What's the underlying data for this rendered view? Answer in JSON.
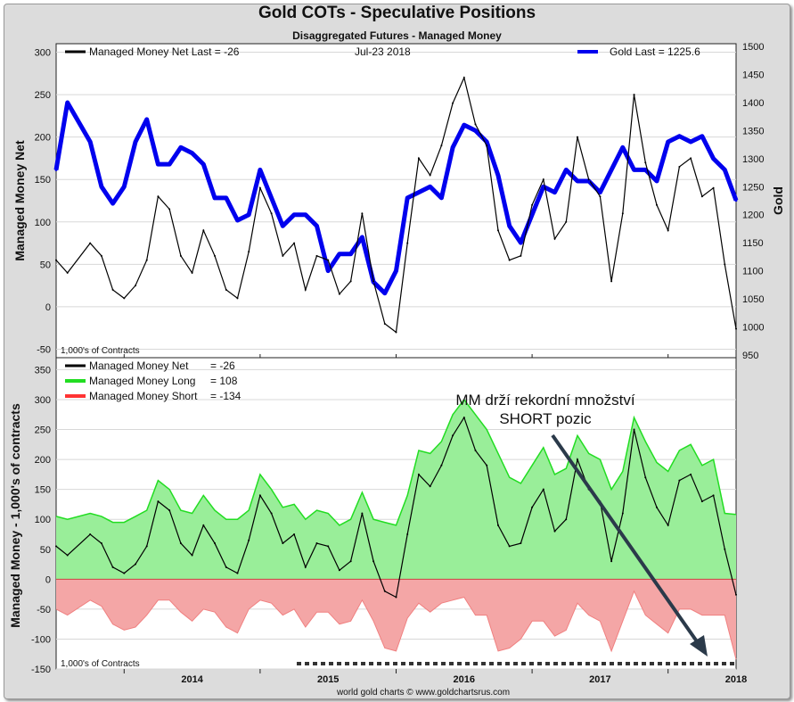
{
  "header": {
    "title": "Gold COTs - Speculative Positions",
    "subtitle": "Disaggregated Futures - Managed Money",
    "footer": "world gold charts © www.goldchartsrus.com"
  },
  "colors": {
    "net": "#000000",
    "gold": "#0000ee",
    "long_line": "#22dd22",
    "long_fill": "#99ee99",
    "short_line": "#ff3333",
    "short_fill": "#f4a6a6",
    "arrow": "#2b3a4a"
  },
  "annotation": {
    "line1": "MM drží rekordní množství",
    "line2": "SHORT pozic"
  },
  "chart_data": [
    {
      "type": "line",
      "panel": "top",
      "date_label": "Jul-23  2018",
      "units_note": "1,000's of Contracts",
      "ylabel": "Managed Money Net",
      "y2label": "Gold",
      "ylim": [
        -60,
        310
      ],
      "y2lim": [
        945,
        1505
      ],
      "yticks": [
        "300",
        "250",
        "200",
        "150",
        "100",
        "50",
        "0",
        "-50"
      ],
      "y2ticks": [
        "1500",
        "1450",
        "1400",
        "1350",
        "1300",
        "1250",
        "1200",
        "1150",
        "1100",
        "1050",
        "1000",
        "950"
      ],
      "x_ticks": [
        "2014",
        "2015",
        "2016",
        "2017",
        "2018"
      ],
      "x_range": [
        "2013-07",
        "2018-07"
      ],
      "series": [
        {
          "name": "Managed Money Net",
          "legend": "Managed Money Net   Last = -26",
          "axis": "left",
          "x": [
            "2013-07",
            "2013-08",
            "2013-10",
            "2013-11",
            "2013-12",
            "2014-01",
            "2014-02",
            "2014-03",
            "2014-04",
            "2014-05",
            "2014-06",
            "2014-07",
            "2014-08",
            "2014-09",
            "2014-10",
            "2014-11",
            "2014-12",
            "2015-01",
            "2015-02",
            "2015-03",
            "2015-04",
            "2015-05",
            "2015-06",
            "2015-07",
            "2015-08",
            "2015-09",
            "2015-10",
            "2015-11",
            "2015-12",
            "2016-01",
            "2016-02",
            "2016-03",
            "2016-04",
            "2016-05",
            "2016-06",
            "2016-07",
            "2016-08",
            "2016-09",
            "2016-10",
            "2016-11",
            "2016-12",
            "2017-01",
            "2017-02",
            "2017-03",
            "2017-04",
            "2017-05",
            "2017-06",
            "2017-07",
            "2017-08",
            "2017-09",
            "2017-10",
            "2017-11",
            "2017-12",
            "2018-01",
            "2018-02",
            "2018-03",
            "2018-04",
            "2018-05",
            "2018-06",
            "2018-07"
          ],
          "values": [
            55,
            40,
            75,
            60,
            20,
            10,
            25,
            55,
            130,
            115,
            60,
            40,
            90,
            60,
            20,
            10,
            65,
            140,
            110,
            60,
            75,
            20,
            60,
            55,
            15,
            30,
            110,
            30,
            -20,
            -30,
            75,
            175,
            155,
            190,
            240,
            270,
            215,
            190,
            90,
            55,
            60,
            120,
            150,
            80,
            100,
            200,
            150,
            130,
            30,
            110,
            250,
            170,
            120,
            90,
            165,
            175,
            130,
            140,
            50,
            -26
          ]
        },
        {
          "name": "Gold",
          "legend": "Gold Last = 1225.6",
          "axis": "right",
          "x": [
            "2013-07",
            "2013-08",
            "2013-10",
            "2013-11",
            "2013-12",
            "2014-01",
            "2014-02",
            "2014-03",
            "2014-04",
            "2014-05",
            "2014-06",
            "2014-07",
            "2014-08",
            "2014-09",
            "2014-10",
            "2014-11",
            "2014-12",
            "2015-01",
            "2015-02",
            "2015-03",
            "2015-04",
            "2015-05",
            "2015-06",
            "2015-07",
            "2015-08",
            "2015-09",
            "2015-10",
            "2015-11",
            "2015-12",
            "2016-01",
            "2016-02",
            "2016-03",
            "2016-04",
            "2016-05",
            "2016-06",
            "2016-07",
            "2016-08",
            "2016-09",
            "2016-10",
            "2016-11",
            "2016-12",
            "2017-01",
            "2017-02",
            "2017-03",
            "2017-04",
            "2017-05",
            "2017-06",
            "2017-07",
            "2017-08",
            "2017-09",
            "2017-10",
            "2017-11",
            "2017-12",
            "2018-01",
            "2018-02",
            "2018-03",
            "2018-04",
            "2018-05",
            "2018-06",
            "2018-07"
          ],
          "values": [
            1280,
            1400,
            1330,
            1250,
            1220,
            1250,
            1330,
            1370,
            1290,
            1290,
            1320,
            1310,
            1290,
            1230,
            1230,
            1190,
            1200,
            1280,
            1230,
            1180,
            1200,
            1200,
            1180,
            1100,
            1130,
            1130,
            1160,
            1080,
            1060,
            1100,
            1230,
            1240,
            1250,
            1230,
            1320,
            1360,
            1350,
            1330,
            1270,
            1180,
            1150,
            1200,
            1250,
            1240,
            1280,
            1260,
            1260,
            1240,
            1280,
            1320,
            1280,
            1280,
            1260,
            1330,
            1340,
            1330,
            1340,
            1300,
            1280,
            1225.6
          ]
        }
      ]
    },
    {
      "type": "area",
      "panel": "bottom",
      "units_note": "1,000's of Contracts",
      "ylabel": "Managed Money - 1,000's of contracts",
      "ylim": [
        -150,
        370
      ],
      "yticks": [
        "350",
        "300",
        "250",
        "200",
        "150",
        "100",
        "50",
        "0",
        "-50",
        "-100",
        "-150"
      ],
      "x_ticks": [
        "2014",
        "2015",
        "2016",
        "2017",
        "2018"
      ],
      "x_range": [
        "2013-07",
        "2018-07"
      ],
      "series": [
        {
          "name": "Managed Money Net",
          "legend_name": "Managed Money Net",
          "legend_value": "= -26",
          "x": [
            "2013-07",
            "2013-08",
            "2013-10",
            "2013-11",
            "2013-12",
            "2014-01",
            "2014-02",
            "2014-03",
            "2014-04",
            "2014-05",
            "2014-06",
            "2014-07",
            "2014-08",
            "2014-09",
            "2014-10",
            "2014-11",
            "2014-12",
            "2015-01",
            "2015-02",
            "2015-03",
            "2015-04",
            "2015-05",
            "2015-06",
            "2015-07",
            "2015-08",
            "2015-09",
            "2015-10",
            "2015-11",
            "2015-12",
            "2016-01",
            "2016-02",
            "2016-03",
            "2016-04",
            "2016-05",
            "2016-06",
            "2016-07",
            "2016-08",
            "2016-09",
            "2016-10",
            "2016-11",
            "2016-12",
            "2017-01",
            "2017-02",
            "2017-03",
            "2017-04",
            "2017-05",
            "2017-06",
            "2017-07",
            "2017-08",
            "2017-09",
            "2017-10",
            "2017-11",
            "2017-12",
            "2018-01",
            "2018-02",
            "2018-03",
            "2018-04",
            "2018-05",
            "2018-06",
            "2018-07"
          ],
          "values": [
            55,
            40,
            75,
            60,
            20,
            10,
            25,
            55,
            130,
            115,
            60,
            40,
            90,
            60,
            20,
            10,
            65,
            140,
            110,
            60,
            75,
            20,
            60,
            55,
            15,
            30,
            110,
            30,
            -20,
            -30,
            75,
            175,
            155,
            190,
            240,
            270,
            215,
            190,
            90,
            55,
            60,
            120,
            150,
            80,
            100,
            200,
            150,
            130,
            30,
            110,
            250,
            170,
            120,
            90,
            165,
            175,
            130,
            140,
            50,
            -26
          ]
        },
        {
          "name": "Managed Money Long",
          "legend_name": "Managed Money Long",
          "legend_value": "= 108",
          "x": [
            "2013-07",
            "2013-08",
            "2013-10",
            "2013-11",
            "2013-12",
            "2014-01",
            "2014-02",
            "2014-03",
            "2014-04",
            "2014-05",
            "2014-06",
            "2014-07",
            "2014-08",
            "2014-09",
            "2014-10",
            "2014-11",
            "2014-12",
            "2015-01",
            "2015-02",
            "2015-03",
            "2015-04",
            "2015-05",
            "2015-06",
            "2015-07",
            "2015-08",
            "2015-09",
            "2015-10",
            "2015-11",
            "2015-12",
            "2016-01",
            "2016-02",
            "2016-03",
            "2016-04",
            "2016-05",
            "2016-06",
            "2016-07",
            "2016-08",
            "2016-09",
            "2016-10",
            "2016-11",
            "2016-12",
            "2017-01",
            "2017-02",
            "2017-03",
            "2017-04",
            "2017-05",
            "2017-06",
            "2017-07",
            "2017-08",
            "2017-09",
            "2017-10",
            "2017-11",
            "2017-12",
            "2018-01",
            "2018-02",
            "2018-03",
            "2018-04",
            "2018-05",
            "2018-06",
            "2018-07"
          ],
          "values": [
            105,
            100,
            110,
            105,
            95,
            95,
            105,
            115,
            165,
            150,
            115,
            110,
            140,
            115,
            100,
            100,
            115,
            175,
            150,
            120,
            125,
            100,
            115,
            110,
            90,
            100,
            145,
            100,
            95,
            90,
            140,
            215,
            210,
            230,
            275,
            300,
            275,
            250,
            210,
            170,
            160,
            190,
            220,
            175,
            185,
            240,
            210,
            200,
            150,
            180,
            270,
            230,
            195,
            180,
            215,
            225,
            190,
            200,
            110,
            108
          ]
        },
        {
          "name": "Managed Money Short",
          "legend_name": "Managed Money Short",
          "legend_value": "= -134",
          "x": [
            "2013-07",
            "2013-08",
            "2013-10",
            "2013-11",
            "2013-12",
            "2014-01",
            "2014-02",
            "2014-03",
            "2014-04",
            "2014-05",
            "2014-06",
            "2014-07",
            "2014-08",
            "2014-09",
            "2014-10",
            "2014-11",
            "2014-12",
            "2015-01",
            "2015-02",
            "2015-03",
            "2015-04",
            "2015-05",
            "2015-06",
            "2015-07",
            "2015-08",
            "2015-09",
            "2015-10",
            "2015-11",
            "2015-12",
            "2016-01",
            "2016-02",
            "2016-03",
            "2016-04",
            "2016-05",
            "2016-06",
            "2016-07",
            "2016-08",
            "2016-09",
            "2016-10",
            "2016-11",
            "2016-12",
            "2017-01",
            "2017-02",
            "2017-03",
            "2017-04",
            "2017-05",
            "2017-06",
            "2017-07",
            "2017-08",
            "2017-09",
            "2017-10",
            "2017-11",
            "2017-12",
            "2018-01",
            "2018-02",
            "2018-03",
            "2018-04",
            "2018-05",
            "2018-06",
            "2018-07"
          ],
          "values": [
            -50,
            -60,
            -35,
            -45,
            -75,
            -85,
            -80,
            -60,
            -35,
            -35,
            -55,
            -70,
            -50,
            -55,
            -80,
            -90,
            -50,
            -35,
            -40,
            -60,
            -50,
            -80,
            -55,
            -55,
            -75,
            -70,
            -35,
            -70,
            -115,
            -120,
            -65,
            -40,
            -55,
            -40,
            -35,
            -30,
            -60,
            -60,
            -120,
            -115,
            -100,
            -70,
            -70,
            -95,
            -85,
            -40,
            -60,
            -70,
            -120,
            -70,
            -20,
            -60,
            -75,
            -90,
            -50,
            -50,
            -60,
            -60,
            -60,
            -134
          ]
        }
      ]
    }
  ]
}
